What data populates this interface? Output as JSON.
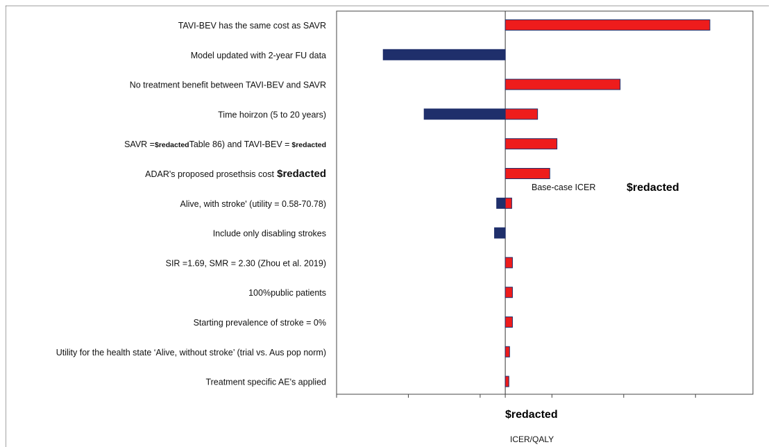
{
  "chart_data": {
    "type": "bar",
    "orientation": "horizontal",
    "chart_style": "tornado",
    "categories": [
      {
        "prefix": "TAVI-BEV has the same cost as SAVR",
        "suffix": ""
      },
      {
        "prefix": "Model updated with 2-year FU data",
        "suffix": ""
      },
      {
        "prefix": "No treatment benefit between TAVI-BEV and SAVR",
        "suffix": ""
      },
      {
        "prefix": "Time hoirzon (5 to 20 years)",
        "suffix": ""
      },
      {
        "prefix": "SAVR =",
        "redacted": "$redacted",
        "suffix": "Table 86) and TAVI-BEV =",
        "redacted2": "$redacted"
      },
      {
        "prefix": "ADAR's proposed prosethsis cost",
        "redacted": "$redacted",
        "suffix": ""
      },
      {
        "prefix": "Alive, with stroke' (utility = 0.58-70.78)",
        "suffix": ""
      },
      {
        "prefix": "Include only disabling strokes",
        "suffix": ""
      },
      {
        "prefix": "SIR =1.69, SMR = 2.30 (Zhou et al. 2019)",
        "suffix": ""
      },
      {
        "prefix": "100%public patients",
        "suffix": ""
      },
      {
        "prefix": "Starting prevalence of stroke = 0%",
        "suffix": ""
      },
      {
        "prefix": "Utility for the health state ‘Alive, without stroke’ (trial vs. Aus pop norm)",
        "suffix": ""
      },
      {
        "prefix": "Treatment specific AE's applied",
        "suffix": ""
      }
    ],
    "series": [
      {
        "color": "#1f2f6b",
        "values": [
          0,
          -1.7,
          0,
          -1.13,
          0,
          0,
          -0.12,
          -0.15,
          0,
          0,
          0,
          0,
          0
        ]
      },
      {
        "color": "#ee1c1c",
        "values": [
          2.85,
          0,
          1.6,
          0.45,
          0.72,
          0.62,
          0.09,
          0,
          0.1,
          0.1,
          0.1,
          0.06,
          0.05
        ]
      }
    ],
    "xlim": [
      -2.35,
      3.45
    ],
    "x_center": 0,
    "x_tick_values": [
      -2.35,
      -1.35,
      -0.35,
      0,
      0.65,
      1.65,
      2.65
    ],
    "x_center_label": "$redacted",
    "xlabel": "ICER/QALY",
    "annotation": {
      "text": "Base-case  ICER",
      "value": "$redacted"
    },
    "grid": false,
    "legend": "none"
  },
  "colors": {
    "negative_bar": "#1f2f6b",
    "positive_bar": "#ee1c1c",
    "axis": "#444444",
    "frame": "#444444"
  }
}
